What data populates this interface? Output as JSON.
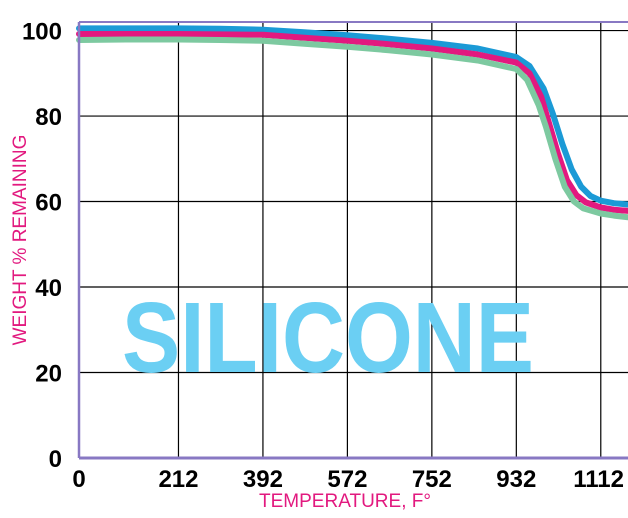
{
  "chart_data": {
    "type": "line",
    "title": "",
    "watermark": "SILICONE",
    "xlabel": "TEMPERATURE, F°",
    "ylabel": "WEIGHT % REMAINING",
    "x_ticks": [
      0,
      212,
      392,
      572,
      752,
      932,
      1112
    ],
    "y_ticks": [
      0,
      20,
      40,
      60,
      80,
      100
    ],
    "xlim": [
      0,
      1170
    ],
    "ylim": [
      0,
      102
    ],
    "grid": true,
    "legend": "none",
    "series": [
      {
        "color": "#1b9ad6",
        "x": [
          0,
          100,
          212,
          300,
          392,
          480,
          572,
          660,
          752,
          850,
          932,
          960,
          990,
          1010,
          1030,
          1050,
          1070,
          1090,
          1112,
          1140,
          1170
        ],
        "y": [
          100.5,
          100.5,
          100.5,
          100.4,
          100.2,
          99.6,
          98.9,
          98.1,
          97.1,
          95.8,
          93.8,
          91.7,
          86.5,
          80.5,
          73.5,
          67.5,
          63.5,
          61.3,
          60.2,
          59.6,
          59.3
        ]
      },
      {
        "color": "#e2197f",
        "x": [
          0,
          100,
          212,
          300,
          392,
          480,
          572,
          660,
          752,
          850,
          932,
          960,
          985,
          1000,
          1020,
          1040,
          1060,
          1080,
          1112,
          1140,
          1170
        ],
        "y": [
          99.2,
          99.2,
          99.2,
          99.1,
          99.0,
          98.3,
          97.6,
          96.8,
          95.8,
          94.4,
          92.5,
          90.0,
          84.5,
          79.0,
          71.5,
          65.0,
          61.5,
          59.8,
          58.6,
          58.1,
          57.8
        ]
      },
      {
        "color": "#7dc9a0",
        "x": [
          0,
          100,
          212,
          300,
          392,
          480,
          572,
          660,
          752,
          850,
          932,
          955,
          980,
          995,
          1015,
          1035,
          1055,
          1075,
          1112,
          1140,
          1170
        ],
        "y": [
          97.8,
          97.9,
          97.9,
          97.8,
          97.6,
          96.9,
          96.2,
          95.4,
          94.4,
          93.0,
          91.0,
          88.5,
          82.5,
          77.5,
          70.0,
          63.5,
          60.0,
          58.4,
          57.2,
          56.7,
          56.3
        ]
      }
    ],
    "colors": {
      "axis_label": "#e2197f",
      "grid": "#000000",
      "frame": "#8878c3",
      "watermark": "#6bcff3",
      "tick_label": "#000000"
    }
  }
}
